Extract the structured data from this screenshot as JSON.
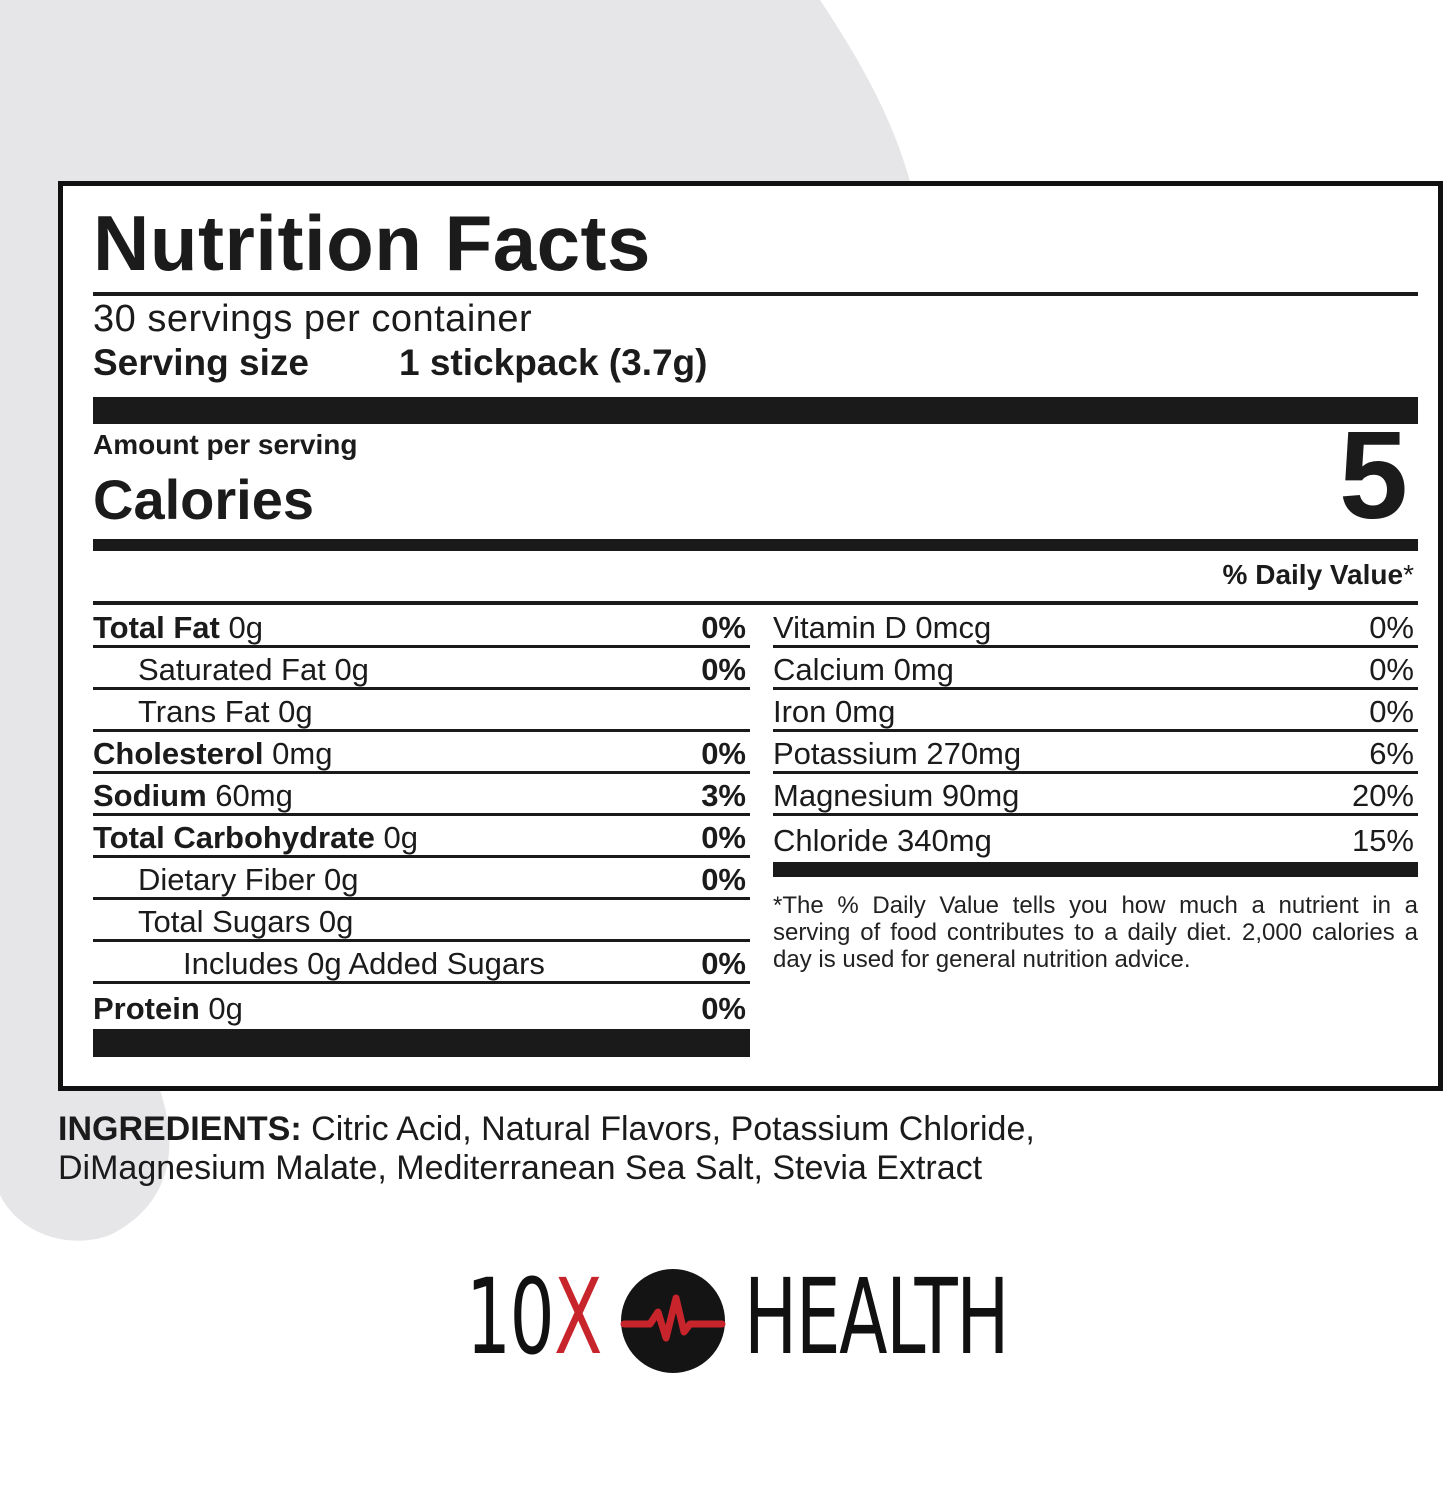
{
  "panel": {
    "title": "Nutrition Facts",
    "servings_per_container": "30 servings per container",
    "serving_size_label": "Serving size",
    "serving_size_value": "1 stickpack (3.7g)",
    "amount_per_serving": "Amount per serving",
    "calories_label": "Calories",
    "calories_value": "5",
    "daily_value_label": "% Daily Value",
    "daily_value_star": "*"
  },
  "left_rows": [
    {
      "label": "Total Fat",
      "value": " 0g",
      "dv": "0%"
    },
    {
      "label": "",
      "value": "Saturated Fat 0g",
      "dv": "0%"
    },
    {
      "label": "",
      "value": "Trans Fat 0g",
      "dv": ""
    },
    {
      "label": "Cholesterol",
      "value": " 0mg",
      "dv": "0%"
    },
    {
      "label": "Sodium",
      "value": " 60mg",
      "dv": "3%"
    },
    {
      "label": "Total Carbohydrate",
      "value": " 0g",
      "dv": "0%"
    },
    {
      "label": "",
      "value": "Dietary Fiber 0g",
      "dv": "0%"
    },
    {
      "label": "",
      "value": "Total Sugars 0g",
      "dv": ""
    },
    {
      "label": "",
      "value": "Includes 0g Added Sugars",
      "dv": "0%"
    },
    {
      "label": "Protein",
      "value": " 0g",
      "dv": "0%"
    }
  ],
  "right_rows": [
    {
      "value": "Vitamin D 0mcg",
      "dv": "0%"
    },
    {
      "value": "Calcium 0mg",
      "dv": "0%"
    },
    {
      "value": "Iron 0mg",
      "dv": "0%"
    },
    {
      "value": "Potassium 270mg",
      "dv": "6%"
    },
    {
      "value": "Magnesium 90mg",
      "dv": "20%"
    },
    {
      "value": "Chloride 340mg",
      "dv": "15%"
    }
  ],
  "footnote": "*The % Daily Value tells you how much a nutrient in a serving of food contributes to a daily diet. 2,000 calories a day is used for general nutrition advice.",
  "ingredients": {
    "label": "INGREDIENTS:",
    "text": " Citric Acid, Natural Flavors, Potassium Chloride, DiMagnesium Malate, Mediterranean Sea Salt, Stevia Extract"
  },
  "logo": {
    "part1": "10",
    "part2": "X",
    "part3": "HEALTH",
    "icon": "heartbeat-circle-icon",
    "accent_color": "#c8242b"
  }
}
